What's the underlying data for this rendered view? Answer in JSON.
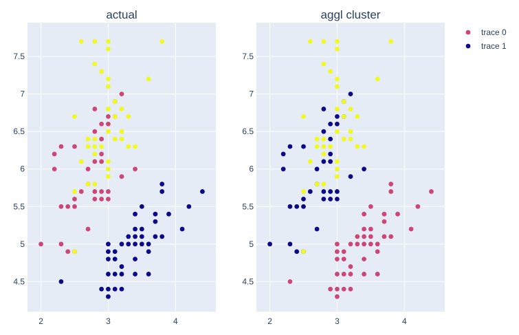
{
  "legend": {
    "items": [
      {
        "name": "trace 0",
        "color": "#cc4778"
      },
      {
        "name": "trace 1",
        "color": "#0d0887"
      }
    ]
  },
  "cluster_colors": {
    "0": "#cc4778",
    "1": "#0d0887",
    "2": "#f0f921"
  },
  "chart_data": [
    {
      "type": "scatter",
      "title": "actual",
      "xlim": [
        1.8,
        4.6
      ],
      "ylim": [
        4.1,
        7.95
      ],
      "xticks": [
        2,
        3,
        4
      ],
      "yticks": [
        4.5,
        5,
        5.5,
        6,
        6.5,
        7,
        7.5
      ],
      "grid": true,
      "points": [
        [
          2.3,
          4.5,
          1
        ],
        [
          2.9,
          4.4,
          1
        ],
        [
          3.0,
          4.4,
          1
        ],
        [
          3.0,
          4.3,
          1
        ],
        [
          3.1,
          4.4,
          1
        ],
        [
          3.2,
          4.4,
          1
        ],
        [
          3.0,
          4.6,
          1
        ],
        [
          3.1,
          4.6,
          1
        ],
        [
          3.2,
          4.6,
          1
        ],
        [
          3.2,
          4.7,
          1
        ],
        [
          3.4,
          4.6,
          1
        ],
        [
          3.6,
          4.6,
          1
        ],
        [
          3.0,
          4.8,
          1
        ],
        [
          3.1,
          4.8,
          1
        ],
        [
          3.4,
          4.8,
          1
        ],
        [
          3.0,
          4.9,
          1
        ],
        [
          3.1,
          4.9,
          1
        ],
        [
          3.6,
          4.9,
          1
        ],
        [
          3.0,
          5.0,
          1
        ],
        [
          3.2,
          5.0,
          1
        ],
        [
          3.3,
          5.0,
          1
        ],
        [
          3.4,
          5.0,
          1
        ],
        [
          3.5,
          5.0,
          1
        ],
        [
          3.6,
          5.0,
          1
        ],
        [
          3.3,
          5.1,
          1
        ],
        [
          3.4,
          5.1,
          1
        ],
        [
          3.5,
          5.1,
          1
        ],
        [
          3.7,
          5.1,
          1
        ],
        [
          3.8,
          5.1,
          1
        ],
        [
          3.4,
          5.2,
          1
        ],
        [
          3.5,
          5.2,
          1
        ],
        [
          4.1,
          5.2,
          1
        ],
        [
          3.7,
          5.3,
          1
        ],
        [
          3.4,
          5.4,
          1
        ],
        [
          3.7,
          5.4,
          1
        ],
        [
          3.9,
          5.4,
          1
        ],
        [
          3.5,
          5.5,
          1
        ],
        [
          4.2,
          5.5,
          1
        ],
        [
          4.4,
          5.7,
          1
        ],
        [
          3.8,
          5.7,
          1
        ],
        [
          3.8,
          5.8,
          1
        ],
        [
          2.0,
          5.0,
          0
        ],
        [
          2.3,
          5.0,
          0
        ],
        [
          2.5,
          5.6,
          0
        ],
        [
          2.7,
          5.2,
          0
        ],
        [
          2.4,
          4.9,
          0
        ],
        [
          2.5,
          4.9,
          0
        ],
        [
          2.3,
          5.5,
          0
        ],
        [
          2.4,
          5.5,
          0
        ],
        [
          2.5,
          5.5,
          0
        ],
        [
          2.6,
          5.7,
          0
        ],
        [
          2.8,
          5.7,
          0
        ],
        [
          2.9,
          5.7,
          0
        ],
        [
          3.0,
          5.7,
          0
        ],
        [
          2.7,
          5.8,
          0
        ],
        [
          2.8,
          5.6,
          0
        ],
        [
          2.9,
          5.6,
          0
        ],
        [
          3.0,
          5.6,
          0
        ],
        [
          2.2,
          6.0,
          0
        ],
        [
          2.7,
          6.0,
          0
        ],
        [
          3.4,
          6.0,
          0
        ],
        [
          2.2,
          6.2,
          0
        ],
        [
          2.9,
          6.2,
          0
        ],
        [
          2.3,
          6.3,
          0
        ],
        [
          2.5,
          6.3,
          0
        ],
        [
          2.8,
          6.1,
          0
        ],
        [
          2.9,
          6.1,
          0
        ],
        [
          2.8,
          6.5,
          0
        ],
        [
          2.9,
          6.4,
          0
        ],
        [
          3.2,
          5.9,
          0
        ],
        [
          2.9,
          6.6,
          0
        ],
        [
          3.0,
          6.6,
          0
        ],
        [
          2.8,
          6.8,
          0
        ],
        [
          3.0,
          6.7,
          0
        ],
        [
          3.1,
          6.9,
          0
        ],
        [
          3.2,
          7.0,
          0
        ],
        [
          3.1,
          6.7,
          0
        ],
        [
          2.5,
          4.9,
          2
        ],
        [
          2.5,
          5.7,
          2
        ],
        [
          2.7,
          5.8,
          2
        ],
        [
          2.8,
          5.8,
          2
        ],
        [
          3.0,
          5.9,
          2
        ],
        [
          2.6,
          6.1,
          2
        ],
        [
          3.0,
          6.1,
          2
        ],
        [
          3.0,
          6.0,
          2
        ],
        [
          2.8,
          6.2,
          2
        ],
        [
          2.7,
          6.3,
          2
        ],
        [
          2.8,
          6.3,
          2
        ],
        [
          2.9,
          6.3,
          2
        ],
        [
          3.3,
          6.3,
          2
        ],
        [
          3.4,
          6.3,
          2
        ],
        [
          2.7,
          6.4,
          2
        ],
        [
          2.8,
          6.4,
          2
        ],
        [
          3.1,
          6.4,
          2
        ],
        [
          3.2,
          6.4,
          2
        ],
        [
          3.0,
          6.5,
          2
        ],
        [
          3.2,
          6.5,
          2
        ],
        [
          2.5,
          6.7,
          2
        ],
        [
          3.1,
          6.7,
          2
        ],
        [
          3.3,
          6.7,
          2
        ],
        [
          3.0,
          6.8,
          2
        ],
        [
          3.2,
          6.8,
          2
        ],
        [
          3.1,
          6.9,
          2
        ],
        [
          3.0,
          7.1,
          2
        ],
        [
          3.0,
          7.2,
          2
        ],
        [
          3.6,
          7.2,
          2
        ],
        [
          2.8,
          7.4,
          2
        ],
        [
          2.9,
          7.3,
          2
        ],
        [
          3.0,
          7.6,
          2
        ],
        [
          2.6,
          7.7,
          2
        ],
        [
          2.8,
          7.7,
          2
        ],
        [
          3.0,
          7.7,
          2
        ],
        [
          3.8,
          7.7,
          2
        ]
      ]
    },
    {
      "type": "scatter",
      "title": "aggl cluster",
      "xlim": [
        1.8,
        4.6
      ],
      "ylim": [
        4.1,
        7.95
      ],
      "xticks": [
        2,
        3,
        4
      ],
      "yticks": [
        4.5,
        5,
        5.5,
        6,
        6.5,
        7,
        7.5
      ],
      "grid": true,
      "points": [
        [
          2.3,
          4.5,
          0
        ],
        [
          2.9,
          4.4,
          0
        ],
        [
          3.0,
          4.4,
          0
        ],
        [
          3.0,
          4.3,
          0
        ],
        [
          3.1,
          4.4,
          0
        ],
        [
          3.2,
          4.4,
          0
        ],
        [
          3.0,
          4.6,
          0
        ],
        [
          3.1,
          4.6,
          0
        ],
        [
          3.2,
          4.6,
          0
        ],
        [
          3.2,
          4.7,
          0
        ],
        [
          3.4,
          4.6,
          0
        ],
        [
          3.6,
          4.6,
          0
        ],
        [
          3.0,
          4.8,
          0
        ],
        [
          3.1,
          4.8,
          0
        ],
        [
          3.4,
          4.8,
          0
        ],
        [
          3.0,
          4.9,
          0
        ],
        [
          3.1,
          4.9,
          0
        ],
        [
          3.6,
          4.9,
          0
        ],
        [
          3.0,
          5.0,
          0
        ],
        [
          3.2,
          5.0,
          0
        ],
        [
          3.3,
          5.0,
          0
        ],
        [
          3.4,
          5.0,
          0
        ],
        [
          3.5,
          5.0,
          0
        ],
        [
          3.6,
          5.0,
          0
        ],
        [
          3.3,
          5.1,
          0
        ],
        [
          3.4,
          5.1,
          0
        ],
        [
          3.5,
          5.1,
          0
        ],
        [
          3.7,
          5.1,
          0
        ],
        [
          3.8,
          5.1,
          0
        ],
        [
          3.4,
          5.2,
          0
        ],
        [
          3.5,
          5.2,
          0
        ],
        [
          4.1,
          5.2,
          0
        ],
        [
          3.7,
          5.3,
          0
        ],
        [
          3.4,
          5.4,
          0
        ],
        [
          3.7,
          5.4,
          0
        ],
        [
          3.9,
          5.4,
          0
        ],
        [
          3.5,
          5.5,
          0
        ],
        [
          4.2,
          5.5,
          0
        ],
        [
          4.4,
          5.7,
          0
        ],
        [
          3.8,
          5.7,
          0
        ],
        [
          3.8,
          5.8,
          0
        ],
        [
          2.0,
          5.0,
          1
        ],
        [
          2.3,
          5.0,
          1
        ],
        [
          2.5,
          5.6,
          1
        ],
        [
          2.7,
          5.2,
          1
        ],
        [
          2.4,
          4.9,
          1
        ],
        [
          2.5,
          4.9,
          1
        ],
        [
          2.3,
          5.5,
          1
        ],
        [
          2.4,
          5.5,
          1
        ],
        [
          2.5,
          5.5,
          1
        ],
        [
          2.6,
          5.7,
          1
        ],
        [
          2.8,
          5.7,
          1
        ],
        [
          2.9,
          5.7,
          1
        ],
        [
          3.0,
          5.7,
          1
        ],
        [
          2.7,
          5.8,
          1
        ],
        [
          2.8,
          5.6,
          1
        ],
        [
          2.9,
          5.6,
          1
        ],
        [
          3.0,
          5.6,
          1
        ],
        [
          2.2,
          6.0,
          1
        ],
        [
          2.7,
          6.0,
          1
        ],
        [
          3.4,
          6.0,
          1
        ],
        [
          2.2,
          6.2,
          1
        ],
        [
          2.9,
          6.2,
          1
        ],
        [
          2.3,
          6.3,
          1
        ],
        [
          2.5,
          6.3,
          1
        ],
        [
          2.8,
          6.1,
          1
        ],
        [
          2.9,
          6.1,
          1
        ],
        [
          2.8,
          6.5,
          1
        ],
        [
          2.9,
          6.4,
          1
        ],
        [
          3.2,
          5.9,
          1
        ],
        [
          2.9,
          6.6,
          1
        ],
        [
          3.0,
          6.6,
          1
        ],
        [
          2.8,
          6.8,
          1
        ],
        [
          3.0,
          6.7,
          1
        ],
        [
          3.1,
          6.9,
          1
        ],
        [
          3.2,
          7.0,
          1
        ],
        [
          3.1,
          6.7,
          1
        ],
        [
          2.5,
          4.9,
          2
        ],
        [
          2.5,
          5.7,
          2
        ],
        [
          2.7,
          5.8,
          2
        ],
        [
          2.8,
          5.8,
          2
        ],
        [
          3.0,
          5.9,
          2
        ],
        [
          2.6,
          6.1,
          2
        ],
        [
          3.0,
          6.1,
          2
        ],
        [
          3.0,
          6.0,
          2
        ],
        [
          2.8,
          6.2,
          2
        ],
        [
          2.7,
          6.3,
          2
        ],
        [
          2.8,
          6.3,
          2
        ],
        [
          2.9,
          6.3,
          2
        ],
        [
          3.3,
          6.3,
          2
        ],
        [
          3.4,
          6.3,
          2
        ],
        [
          2.7,
          6.4,
          2
        ],
        [
          2.8,
          6.4,
          2
        ],
        [
          3.1,
          6.4,
          2
        ],
        [
          3.2,
          6.4,
          2
        ],
        [
          3.0,
          6.5,
          2
        ],
        [
          3.2,
          6.5,
          2
        ],
        [
          2.5,
          6.7,
          2
        ],
        [
          3.1,
          6.7,
          2
        ],
        [
          3.3,
          6.7,
          2
        ],
        [
          3.0,
          6.8,
          2
        ],
        [
          3.2,
          6.8,
          2
        ],
        [
          3.1,
          6.9,
          2
        ],
        [
          3.0,
          7.1,
          2
        ],
        [
          3.0,
          7.2,
          2
        ],
        [
          3.6,
          7.2,
          2
        ],
        [
          2.8,
          7.4,
          2
        ],
        [
          2.9,
          7.3,
          2
        ],
        [
          3.0,
          7.6,
          2
        ],
        [
          2.6,
          7.7,
          2
        ],
        [
          2.8,
          7.7,
          2
        ],
        [
          3.0,
          7.7,
          2
        ],
        [
          3.8,
          7.7,
          2
        ]
      ]
    }
  ]
}
